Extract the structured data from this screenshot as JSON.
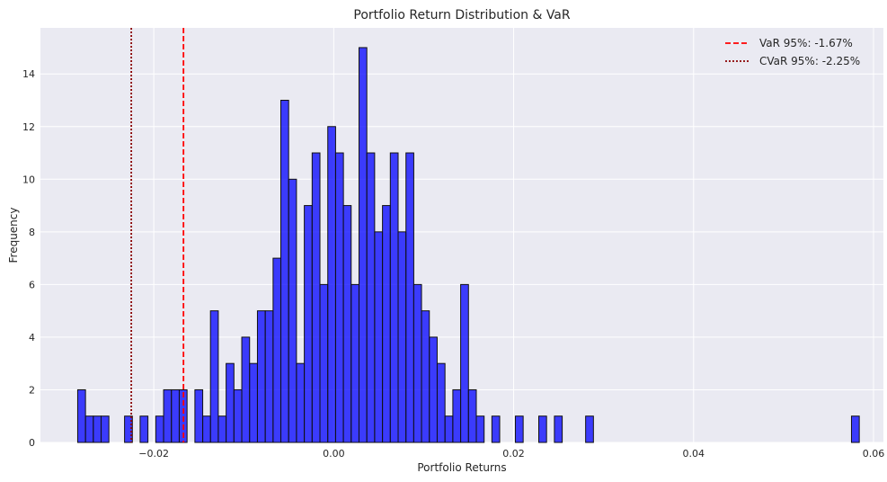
{
  "chart_data": {
    "type": "bar",
    "subtype": "histogram",
    "title": "Portfolio Return Distribution & VaR",
    "xlabel": "Portfolio Returns",
    "ylabel": "Frequency",
    "xlim": [
      -0.0326,
      0.0611
    ],
    "ylim": [
      0,
      15.75
    ],
    "bin_width": 0.000868,
    "bin_left_edges": [
      -0.02846,
      -0.02759,
      -0.02672,
      -0.02586,
      -0.02325,
      -0.02152,
      -0.01978,
      -0.01891,
      -0.01804,
      -0.01717,
      -0.01543,
      -0.01456,
      -0.0137,
      -0.01283,
      -0.01196,
      -0.01109,
      -0.01022,
      -0.00935,
      -0.00848,
      -0.00761,
      -0.00674,
      -0.00588,
      -0.00501,
      -0.00414,
      -0.00327,
      -0.0024,
      -0.00153,
      -0.00066,
      0.00021,
      0.00107,
      0.00194,
      0.00281,
      0.00368,
      0.00455,
      0.00542,
      0.00629,
      0.00716,
      0.00803,
      0.00889,
      0.00976,
      0.01063,
      0.0115,
      0.01237,
      0.01324,
      0.01411,
      0.01498,
      0.01585,
      0.01758,
      0.02019,
      0.02279,
      0.02453,
      0.028,
      0.05755
    ],
    "values": [
      2,
      1,
      1,
      1,
      1,
      1,
      1,
      2,
      2,
      2,
      2,
      1,
      5,
      1,
      3,
      2,
      4,
      3,
      5,
      5,
      7,
      13,
      10,
      3,
      9,
      11,
      6,
      12,
      11,
      9,
      6,
      15,
      11,
      8,
      9,
      11,
      8,
      11,
      6,
      5,
      4,
      3,
      1,
      2,
      6,
      2,
      1,
      1,
      1,
      1,
      1,
      1,
      1
    ],
    "xticks": [
      -0.02,
      0.0,
      0.02,
      0.04,
      0.06
    ],
    "xtick_labels": [
      "−0.02",
      "0.00",
      "0.02",
      "0.04",
      "0.06"
    ],
    "yticks": [
      0,
      2,
      4,
      6,
      8,
      10,
      12,
      14
    ],
    "ytick_labels": [
      "0",
      "2",
      "4",
      "6",
      "8",
      "10",
      "12",
      "14"
    ],
    "lines": [
      {
        "name": "VaR 95%: -1.67%",
        "x": -0.0167,
        "style": "dashed",
        "color": "#ff0000"
      },
      {
        "name": "CVaR 95%: -2.25%",
        "x": -0.0225,
        "style": "dotted",
        "color": "#8b0000"
      }
    ],
    "bar_color": "#0000ff",
    "bar_edge_color": "#111111",
    "background_color": "#eaeaf2",
    "grid": true,
    "legend_position": "top-right"
  }
}
